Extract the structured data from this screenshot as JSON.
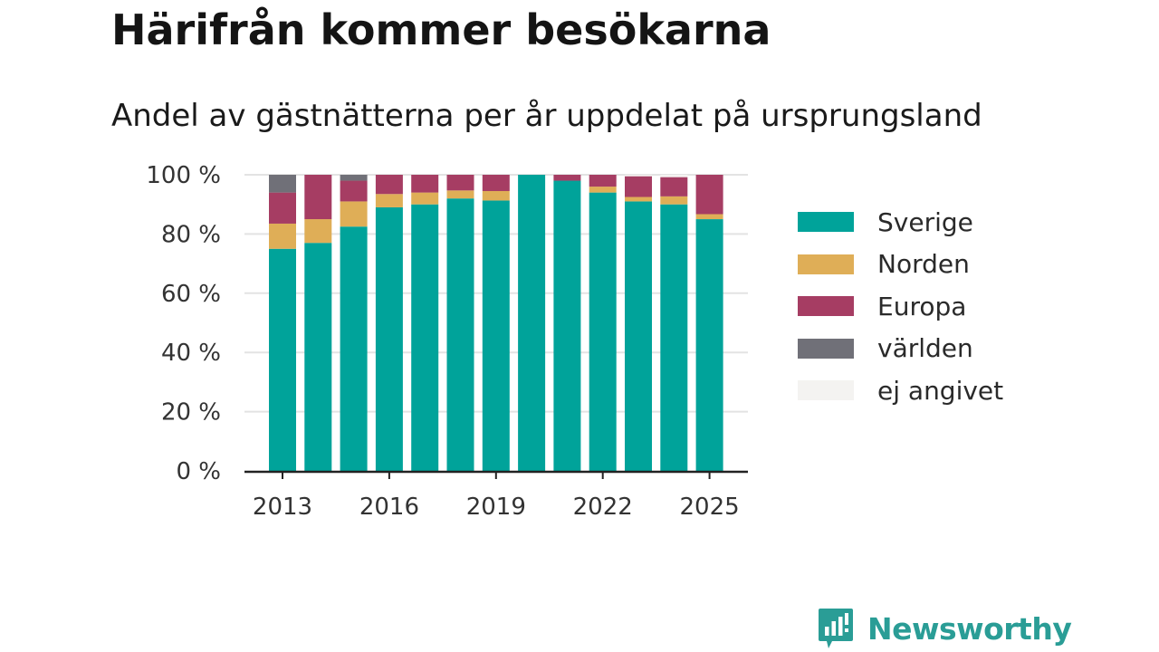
{
  "header": {
    "title": "Härifrån kommer besökarna",
    "subtitle": "Andel av gästnätterna per år uppdelat på ursprungsland"
  },
  "brand": {
    "name": "Newsworthy",
    "icon": "newsworthy-logo-icon",
    "color": "#2a9d96"
  },
  "chart_data": {
    "type": "bar",
    "stacked": true,
    "categories": [
      "2013",
      "2014",
      "2015",
      "2016",
      "2017",
      "2018",
      "2019",
      "2020",
      "2021",
      "2022",
      "2023",
      "2024",
      "2025"
    ],
    "x_tick_labels": [
      "2013",
      "2016",
      "2019",
      "2022",
      "2025"
    ],
    "y_tick_labels": [
      "0 %",
      "20 %",
      "40 %",
      "60 %",
      "80 %",
      "100 %"
    ],
    "y_ticks": [
      0,
      20,
      40,
      60,
      80,
      100
    ],
    "ylim": [
      0,
      100
    ],
    "grid": true,
    "legend_position": "right",
    "series": [
      {
        "name": "Sverige",
        "color": "#00a39a",
        "values": [
          75,
          77,
          82.5,
          89,
          90,
          92,
          91.3,
          100,
          98,
          94,
          91,
          90,
          85
        ]
      },
      {
        "name": "Norden",
        "color": "#dfae57",
        "values": [
          8.5,
          8,
          8.5,
          4.5,
          4,
          2.7,
          3.2,
          0,
          0,
          2,
          1.5,
          2.7,
          1.7
        ]
      },
      {
        "name": "Europa",
        "color": "#a63d63",
        "values": [
          10.5,
          15,
          7,
          6.5,
          6,
          5.3,
          5.5,
          0,
          2,
          4,
          7,
          6.5,
          13.3
        ]
      },
      {
        "name": "världen",
        "color": "#707078",
        "values": [
          6,
          0,
          2,
          0,
          0,
          0,
          0,
          0,
          0,
          0,
          0,
          0,
          0
        ]
      },
      {
        "name": "ej angivet",
        "color": "#f4f3f1",
        "values": [
          0,
          0,
          0,
          0,
          0,
          0,
          0,
          0,
          0,
          0,
          0.5,
          0.8,
          0
        ]
      }
    ]
  }
}
